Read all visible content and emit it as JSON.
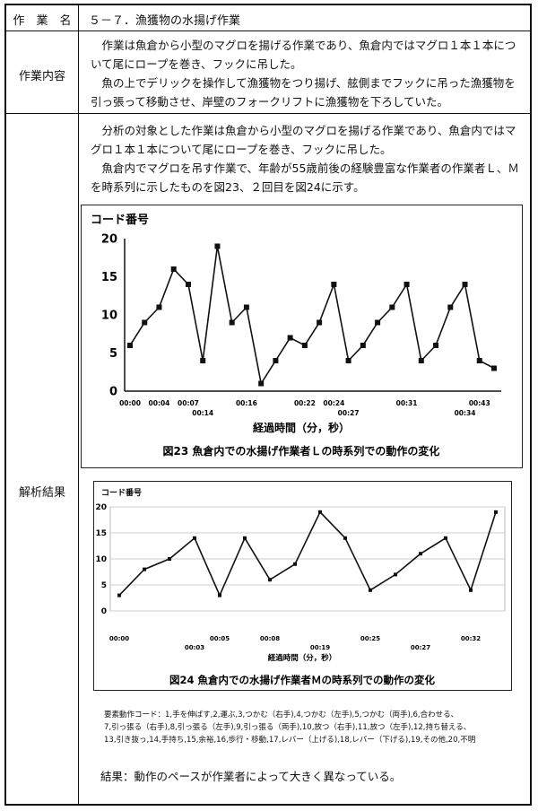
{
  "table": {
    "row1_label": "作　業　名",
    "row1_value": "５－７．漁獲物の水揚げ作業",
    "row2_label": "作業内容",
    "row2_paragraphs": [
      "作業は魚倉から小型のマグロを揚げる作業であり、魚倉内ではマグロ１本１本について尾にロープを巻き、フックに吊した。",
      "魚の上でデリックを操作して漁獲物をつり揚げ、舷側までフックに吊った漁獲物を引っ張って移動させ、岸壁のフォークリフトに漁獲物を下ろしていた。"
    ],
    "row3_label": "解析結果",
    "row3_paragraphs": [
      "分析の対象とした作業は魚倉から小型のマグロを揚げる作業であり、魚倉内ではマグロ１本１本について尾にロープを巻き、フックに吊した。",
      "魚倉内でマグロを吊す作業で、年齢が55歳前後の経験豊富な作業者の作業者Ｌ、Ｍを時系列に示したものを図23、２回目を図24に示す。"
    ]
  },
  "legend_lines": [
    "要素動作コード：1,手を伸ばす,2,運ぶ,3,つかむ（右手),4,つかむ（左手),5,つかむ（両手),6,合わせる、",
    "7,引っ張る（右手),8,引っ張る（左手),9,引っ張る（両手),10,放つ（右手),11,放つ（左手),12,持ち替える、",
    "13,引き抜っ,14,手持ち,15,余裕,16,歩行・移動,17,レバー（上げる),18,レバー（下げる),19,その他,20,不明"
  ],
  "result_text": "結果：動作のペースが作業者によって大きく異なっている。",
  "chart_data": [
    {
      "type": "line",
      "ylabel": "コード番号",
      "xlabel": "経過時間（分，秒）",
      "caption": "図23 魚倉内での水揚げ作業者Ｌの時系列での動作の変化",
      "ylim": [
        0,
        20
      ],
      "yticks": [
        0,
        5,
        10,
        15,
        20
      ],
      "values": [
        6,
        9,
        11,
        16,
        14,
        4,
        19,
        9,
        11,
        1,
        4,
        7,
        6,
        9,
        14,
        4,
        6,
        9,
        11,
        14,
        4,
        6,
        11,
        14,
        4,
        3
      ],
      "tick_labels": [
        {
          "index": 0,
          "label": "00:00",
          "row": 0
        },
        {
          "index": 2,
          "label": "00:04",
          "row": 0
        },
        {
          "index": 4,
          "label": "00:07",
          "row": 0
        },
        {
          "index": 5,
          "label": "00:14",
          "row": 1
        },
        {
          "index": 8,
          "label": "00:16",
          "row": 0
        },
        {
          "index": 12,
          "label": "00:22",
          "row": 0
        },
        {
          "index": 14,
          "label": "00:24",
          "row": 0
        },
        {
          "index": 15,
          "label": "00:27",
          "row": 1
        },
        {
          "index": 19,
          "label": "00:31",
          "row": 0
        },
        {
          "index": 23,
          "label": "00:34",
          "row": 1
        },
        {
          "index": 24,
          "label": "00:43",
          "row": 0
        }
      ],
      "grid": false
    },
    {
      "type": "line",
      "ylabel": "コード番号",
      "xlabel": "経過時間（分，秒）",
      "caption": "図24 魚倉内での水揚げ作業者Ｍの時系列での動作の変化",
      "ylim": [
        0,
        20
      ],
      "yticks": [
        0,
        5,
        10,
        15,
        20
      ],
      "values": [
        3,
        8,
        10,
        14,
        3,
        14,
        6,
        9,
        19,
        14,
        4,
        7,
        11,
        14,
        4,
        19
      ],
      "tick_labels": [
        {
          "index": 0,
          "label": "00:00",
          "row": 0
        },
        {
          "index": 3,
          "label": "00:03",
          "row": 1
        },
        {
          "index": 4,
          "label": "00:05",
          "row": 0
        },
        {
          "index": 6,
          "label": "00:08",
          "row": 0
        },
        {
          "index": 8,
          "label": "00:19",
          "row": 1
        },
        {
          "index": 10,
          "label": "00:25",
          "row": 0
        },
        {
          "index": 12,
          "label": "00:27",
          "row": 1
        },
        {
          "index": 14,
          "label": "00:32",
          "row": 0
        }
      ],
      "grid": true
    }
  ]
}
